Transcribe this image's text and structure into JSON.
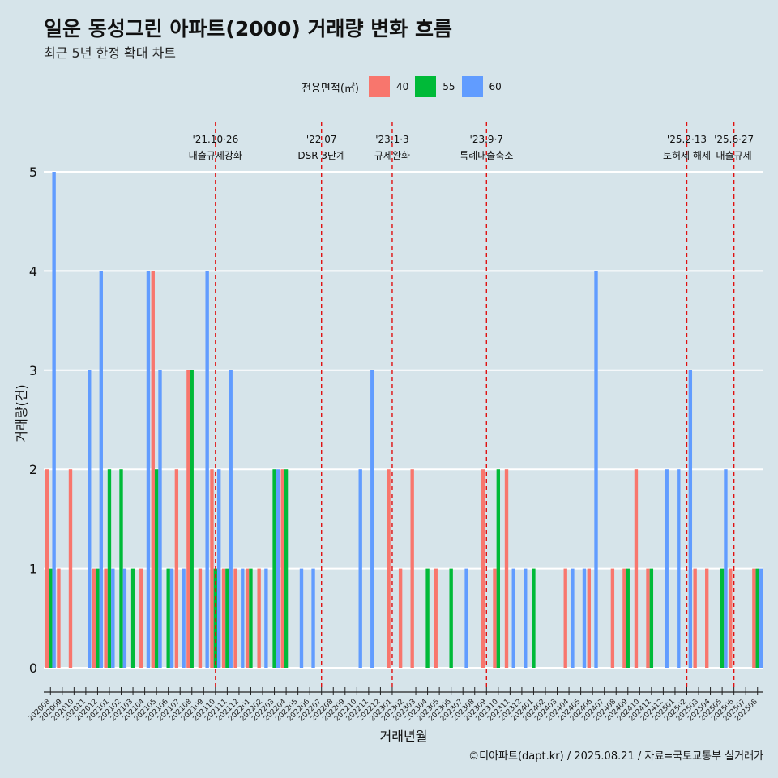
{
  "title": "일운 동성그린 아파트(2000) 거래량 변화 흐름",
  "subtitle": "최근 5년 한정 확대 차트",
  "caption": "©디아파트(dapt.kr) / 2025.08.21 / 자료=국토교통부 실거래가",
  "legend": {
    "title": "전용면적(㎡)",
    "items": [
      {
        "label": "40",
        "color": "#f8766d"
      },
      {
        "label": "55",
        "color": "#00ba38"
      },
      {
        "label": "60",
        "color": "#619cff"
      }
    ]
  },
  "chart_data": {
    "type": "bar",
    "xlabel": "거래년월",
    "ylabel": "거래량(건)",
    "ylim": [
      0,
      5
    ],
    "yticks": [
      0,
      1,
      2,
      3,
      4,
      5
    ],
    "grid": true,
    "legend_position": "top",
    "categories": [
      "202008",
      "202009",
      "202010",
      "202011",
      "202012",
      "202101",
      "202102",
      "202103",
      "202104",
      "202105",
      "202106",
      "202107",
      "202108",
      "202109",
      "202110",
      "202111",
      "202112",
      "202201",
      "202202",
      "202203",
      "202204",
      "202205",
      "202206",
      "202207",
      "202208",
      "202209",
      "202210",
      "202211",
      "202212",
      "202301",
      "202302",
      "202303",
      "202304",
      "202305",
      "202306",
      "202307",
      "202308",
      "202309",
      "202310",
      "202311",
      "202312",
      "202401",
      "202402",
      "202403",
      "202404",
      "202405",
      "202406",
      "202407",
      "202408",
      "202409",
      "202410",
      "202411",
      "202412",
      "202501",
      "202502",
      "202503",
      "202504",
      "202505",
      "202506",
      "202507",
      "202508"
    ],
    "series": [
      {
        "name": "40",
        "color": "#f8766d",
        "values": [
          2,
          1,
          2,
          0,
          1,
          1,
          0,
          0,
          1,
          4,
          0,
          2,
          3,
          1,
          2,
          1,
          1,
          1,
          1,
          0,
          2,
          0,
          0,
          0,
          0,
          0,
          0,
          0,
          0,
          2,
          1,
          2,
          0,
          1,
          0,
          0,
          0,
          2,
          1,
          2,
          0,
          0,
          0,
          0,
          1,
          0,
          1,
          0,
          1,
          1,
          2,
          1,
          0,
          0,
          0,
          1,
          1,
          0,
          1,
          0,
          1
        ]
      },
      {
        "name": "55",
        "color": "#00ba38",
        "values": [
          1,
          0,
          0,
          0,
          1,
          2,
          2,
          1,
          0,
          2,
          1,
          0,
          3,
          0,
          1,
          1,
          0,
          1,
          0,
          2,
          2,
          0,
          0,
          0,
          0,
          0,
          0,
          0,
          0,
          0,
          0,
          0,
          1,
          0,
          1,
          0,
          0,
          0,
          2,
          0,
          0,
          1,
          0,
          0,
          0,
          0,
          0,
          0,
          0,
          1,
          0,
          1,
          0,
          0,
          0,
          0,
          0,
          1,
          0,
          0,
          1
        ]
      },
      {
        "name": "60",
        "color": "#619cff",
        "values": [
          5,
          0,
          0,
          3,
          4,
          1,
          1,
          0,
          4,
          3,
          1,
          1,
          0,
          4,
          2,
          3,
          1,
          0,
          1,
          2,
          0,
          1,
          1,
          0,
          0,
          0,
          2,
          3,
          0,
          0,
          0,
          0,
          0,
          0,
          0,
          1,
          0,
          0,
          0,
          1,
          1,
          0,
          0,
          0,
          1,
          1,
          4,
          0,
          0,
          0,
          0,
          0,
          2,
          2,
          3,
          0,
          0,
          2,
          0,
          0,
          1
        ]
      }
    ],
    "events": [
      {
        "date": "'21.10·26",
        "label": "대출규제강화",
        "month": "202110"
      },
      {
        "date": "'22.07",
        "label": "DSR 3단계",
        "month": "202207"
      },
      {
        "date": "'23.1·3",
        "label": "규제완화",
        "month": "202301"
      },
      {
        "date": "'23.9·7",
        "label": "특례대출축소",
        "month": "202309"
      },
      {
        "date": "'25.2·13",
        "label": "토허제 해제",
        "month": "202502"
      },
      {
        "date": "'25.6·27",
        "label": "대출규제",
        "month": "202506"
      }
    ]
  }
}
